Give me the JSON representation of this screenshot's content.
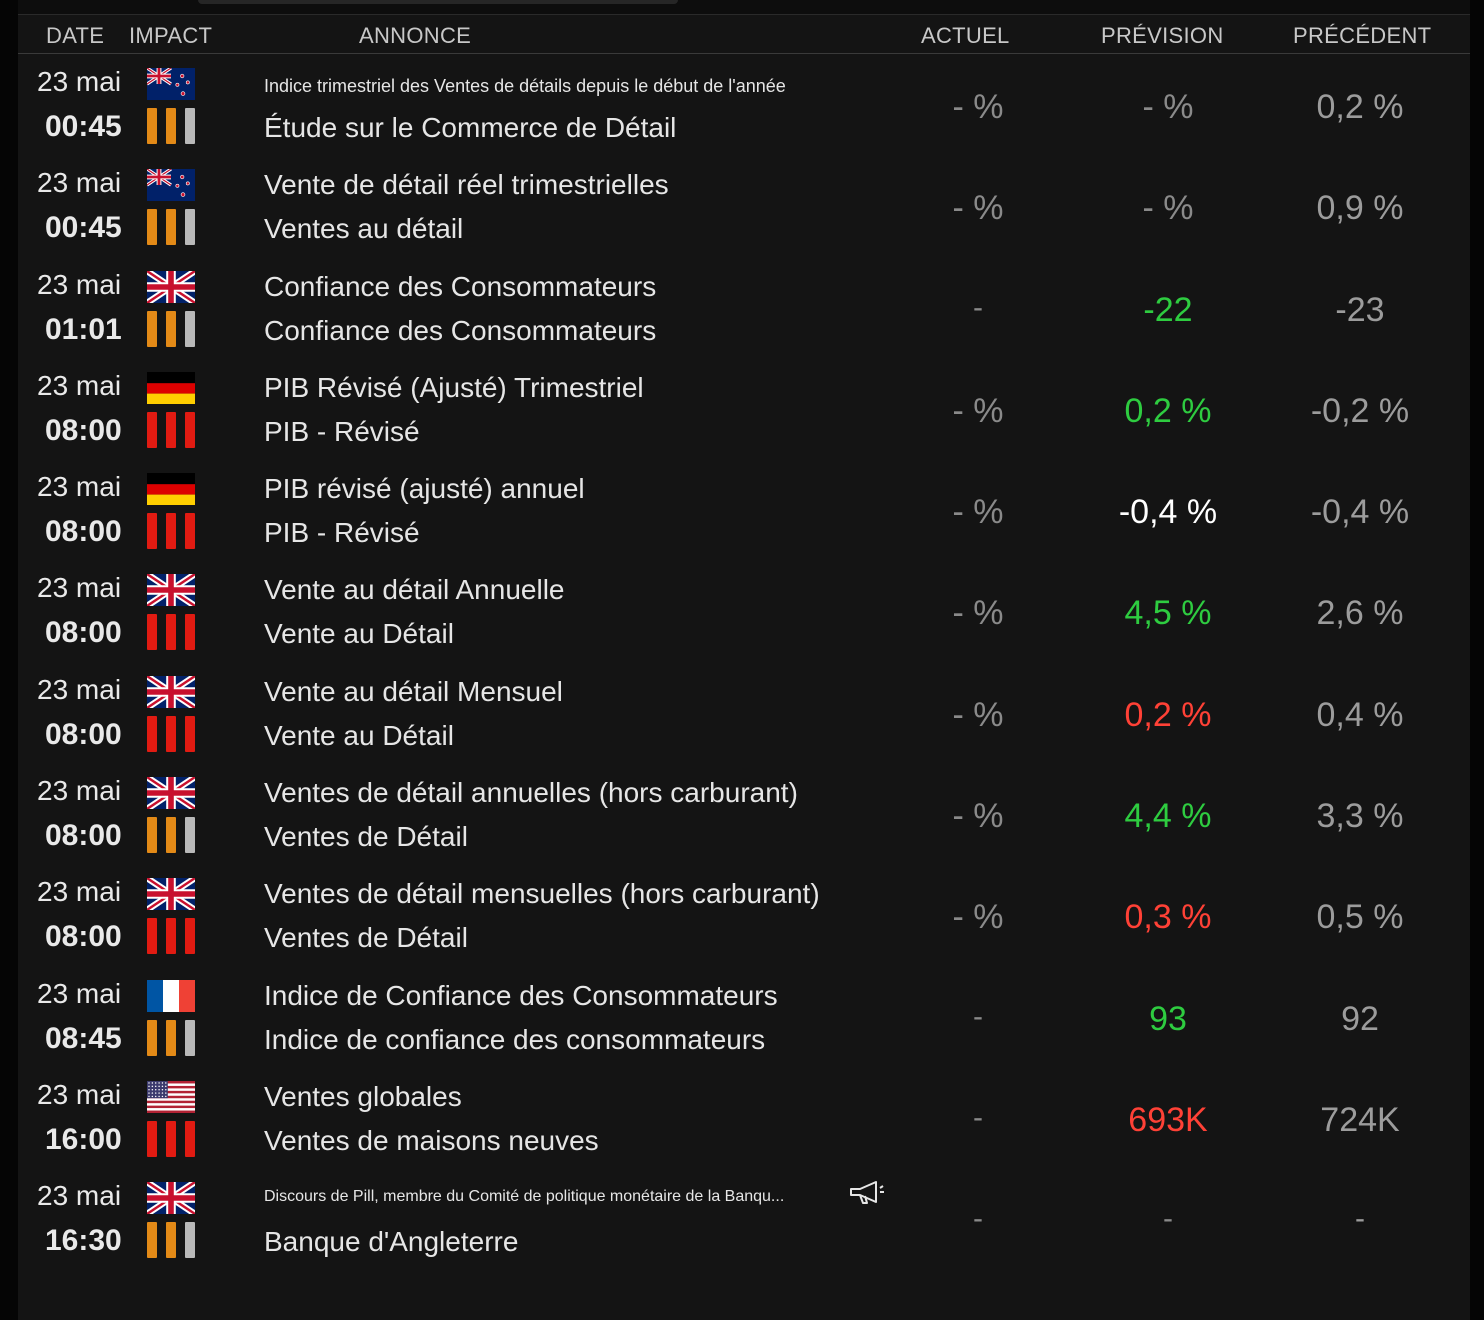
{
  "header": {
    "date": "DATE",
    "impact": "IMPACT",
    "annonce": "ANNONCE",
    "actuel": "ACTUEL",
    "prevision": "PRÉVISION",
    "precedent": "PRÉCÉDENT"
  },
  "colors": {
    "medium": "#e38a17",
    "high": "#e11b12",
    "low": "#b9b9b9",
    "green": "#2ecc40",
    "red": "#ff4136"
  },
  "rows": [
    {
      "date": "23 mai",
      "time": "00:45",
      "flag": "nz-flag-icon",
      "impact": 2,
      "title": "Indice trimestriel des Ventes de détails depuis le début de l'année",
      "category": "Étude sur le Commerce de Détail",
      "actuel": "- %",
      "prevision": "- %",
      "prevision_color": "gray",
      "precedent": "0,2 %"
    },
    {
      "date": "23 mai",
      "time": "00:45",
      "flag": "nz-flag-icon",
      "impact": 2,
      "title": "Vente de détail réel trimestrielles",
      "category": "Ventes au détail",
      "actuel": "- %",
      "prevision": "- %",
      "prevision_color": "gray",
      "precedent": "0,9 %"
    },
    {
      "date": "23 mai",
      "time": "01:01",
      "flag": "uk-flag-icon",
      "impact": 2,
      "title": "Confiance des Consommateurs",
      "category": "Confiance des Consommateurs",
      "actuel": "-",
      "prevision": "-22",
      "prevision_color": "green",
      "precedent": "-23"
    },
    {
      "date": "23 mai",
      "time": "08:00",
      "flag": "de-flag-icon",
      "impact": 3,
      "title": "PIB Révisé (Ajusté) Trimestriel",
      "category": "PIB - Révisé",
      "actuel": "- %",
      "prevision": "0,2 %",
      "prevision_color": "green",
      "precedent": "-0,2 %"
    },
    {
      "date": "23 mai",
      "time": "08:00",
      "flag": "de-flag-icon",
      "impact": 3,
      "title": "PIB révisé (ajusté) annuel",
      "category": "PIB - Révisé",
      "actuel": "- %",
      "prevision": "-0,4 %",
      "prevision_color": "white",
      "precedent": "-0,4 %"
    },
    {
      "date": "23 mai",
      "time": "08:00",
      "flag": "uk-flag-icon",
      "impact": 3,
      "title": "Vente au détail Annuelle",
      "category": "Vente au Détail",
      "actuel": "- %",
      "prevision": "4,5 %",
      "prevision_color": "green",
      "precedent": "2,6 %"
    },
    {
      "date": "23 mai",
      "time": "08:00",
      "flag": "uk-flag-icon",
      "impact": 3,
      "title": "Vente au détail Mensuel",
      "category": "Vente au Détail",
      "actuel": "- %",
      "prevision": "0,2 %",
      "prevision_color": "red",
      "precedent": "0,4 %"
    },
    {
      "date": "23 mai",
      "time": "08:00",
      "flag": "uk-flag-icon",
      "impact": 2,
      "title": "Ventes de détail annuelles (hors carburant)",
      "category": "Ventes de Détail",
      "actuel": "- %",
      "prevision": "4,4 %",
      "prevision_color": "green",
      "precedent": "3,3 %"
    },
    {
      "date": "23 mai",
      "time": "08:00",
      "flag": "uk-flag-icon",
      "impact": 3,
      "title": "Ventes de détail mensuelles (hors carburant)",
      "category": "Ventes de Détail",
      "actuel": "- %",
      "prevision": "0,3 %",
      "prevision_color": "red",
      "precedent": "0,5 %"
    },
    {
      "date": "23 mai",
      "time": "08:45",
      "flag": "fr-flag-icon",
      "impact": 2,
      "title": "Indice de Confiance des Consommateurs",
      "category": "Indice de confiance des consommateurs",
      "actuel": "-",
      "prevision": "93",
      "prevision_color": "green",
      "precedent": "92"
    },
    {
      "date": "23 mai",
      "time": "16:00",
      "flag": "us-flag-icon",
      "impact": 3,
      "title": "Ventes globales",
      "category": "Ventes de maisons neuves",
      "actuel": "-",
      "prevision": "693K",
      "prevision_color": "red",
      "precedent": "724K"
    },
    {
      "date": "23 mai",
      "time": "16:30",
      "flag": "uk-flag-icon",
      "impact": 2,
      "title": "Discours de Pill, membre du Comité de politique monétaire de la Banqu...",
      "category": "Banque d'Angleterre",
      "actuel": "-",
      "prevision": "-",
      "prevision_color": "gray",
      "precedent": "-",
      "speech": true
    }
  ]
}
